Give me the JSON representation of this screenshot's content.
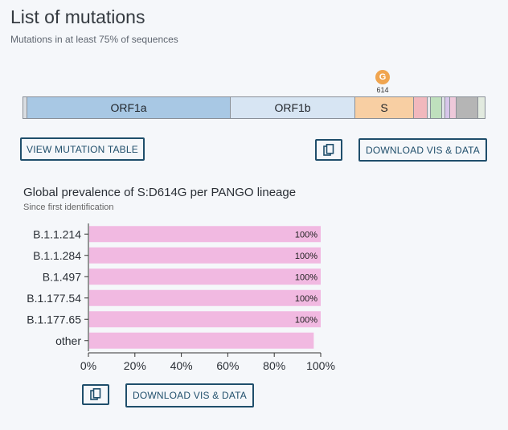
{
  "header": {
    "title": "List of mutations",
    "subtitle": "Mutations in at least 75% of sequences"
  },
  "genome": {
    "segments": [
      {
        "label": "ORF1a",
        "color": "#a8c8e4"
      },
      {
        "label": "ORF1b",
        "color": "#d7e5f3"
      },
      {
        "label": "S",
        "color": "#f8cfa3"
      }
    ],
    "marker": {
      "letter": "G",
      "position": "614",
      "color": "#f0a550"
    }
  },
  "buttons": {
    "view_table": "VIEW MUTATION TABLE",
    "download_top": "DOWNLOAD VIS & DATA",
    "download_bottom": "DOWNLOAD VIS & DATA",
    "copy_icon": "copy-icon"
  },
  "chart_data": {
    "type": "bar",
    "orientation": "horizontal",
    "title": "Global prevalence of S:D614G per PANGO lineage",
    "subtitle": "Since first identification",
    "categories": [
      "B.1.1.214",
      "B.1.1.284",
      "B.1.497",
      "B.1.177.54",
      "B.1.177.65",
      "other"
    ],
    "values": [
      100,
      100,
      100,
      100,
      100,
      97
    ],
    "data_labels": [
      "100%",
      "100%",
      "100%",
      "100%",
      "100%",
      ""
    ],
    "xlim": [
      0,
      100
    ],
    "x_ticks": [
      "0%",
      "20%",
      "40%",
      "60%",
      "80%",
      "100%"
    ],
    "bar_color": "#f1b9e1",
    "grid": false
  }
}
